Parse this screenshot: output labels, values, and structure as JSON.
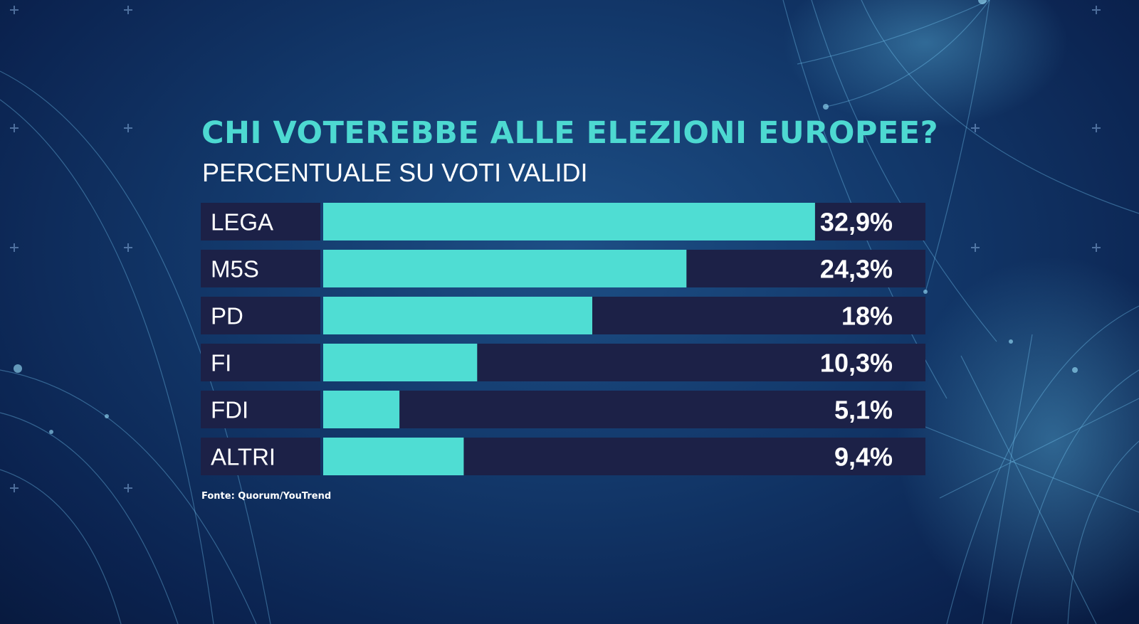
{
  "chart_data": {
    "type": "bar",
    "orientation": "horizontal",
    "title": "CHI VOTEREBBE ALLE ELEZIONI EUROPEE?",
    "subtitle": "PERCENTUALE SU VOTI VALIDI",
    "categories": [
      "LEGA",
      "M5S",
      "PD",
      "FI",
      "FDI",
      "ALTRI"
    ],
    "values": [
      32.9,
      24.3,
      18,
      10.3,
      5.1,
      9.4
    ],
    "value_labels": [
      "32,9%",
      "24,3%",
      "18%",
      "10,3%",
      "5,1%",
      "9,4%"
    ],
    "xlim": [
      0,
      40
    ],
    "grid": false,
    "legend": "none",
    "colors": {
      "bar": "#4fddd3",
      "track": "#1c2147",
      "label_bg": "#1c2147"
    }
  },
  "source": "Fonte: Quorum/YouTrend",
  "colors": {
    "title": "#4dd9d1",
    "text": "#ffffff"
  }
}
